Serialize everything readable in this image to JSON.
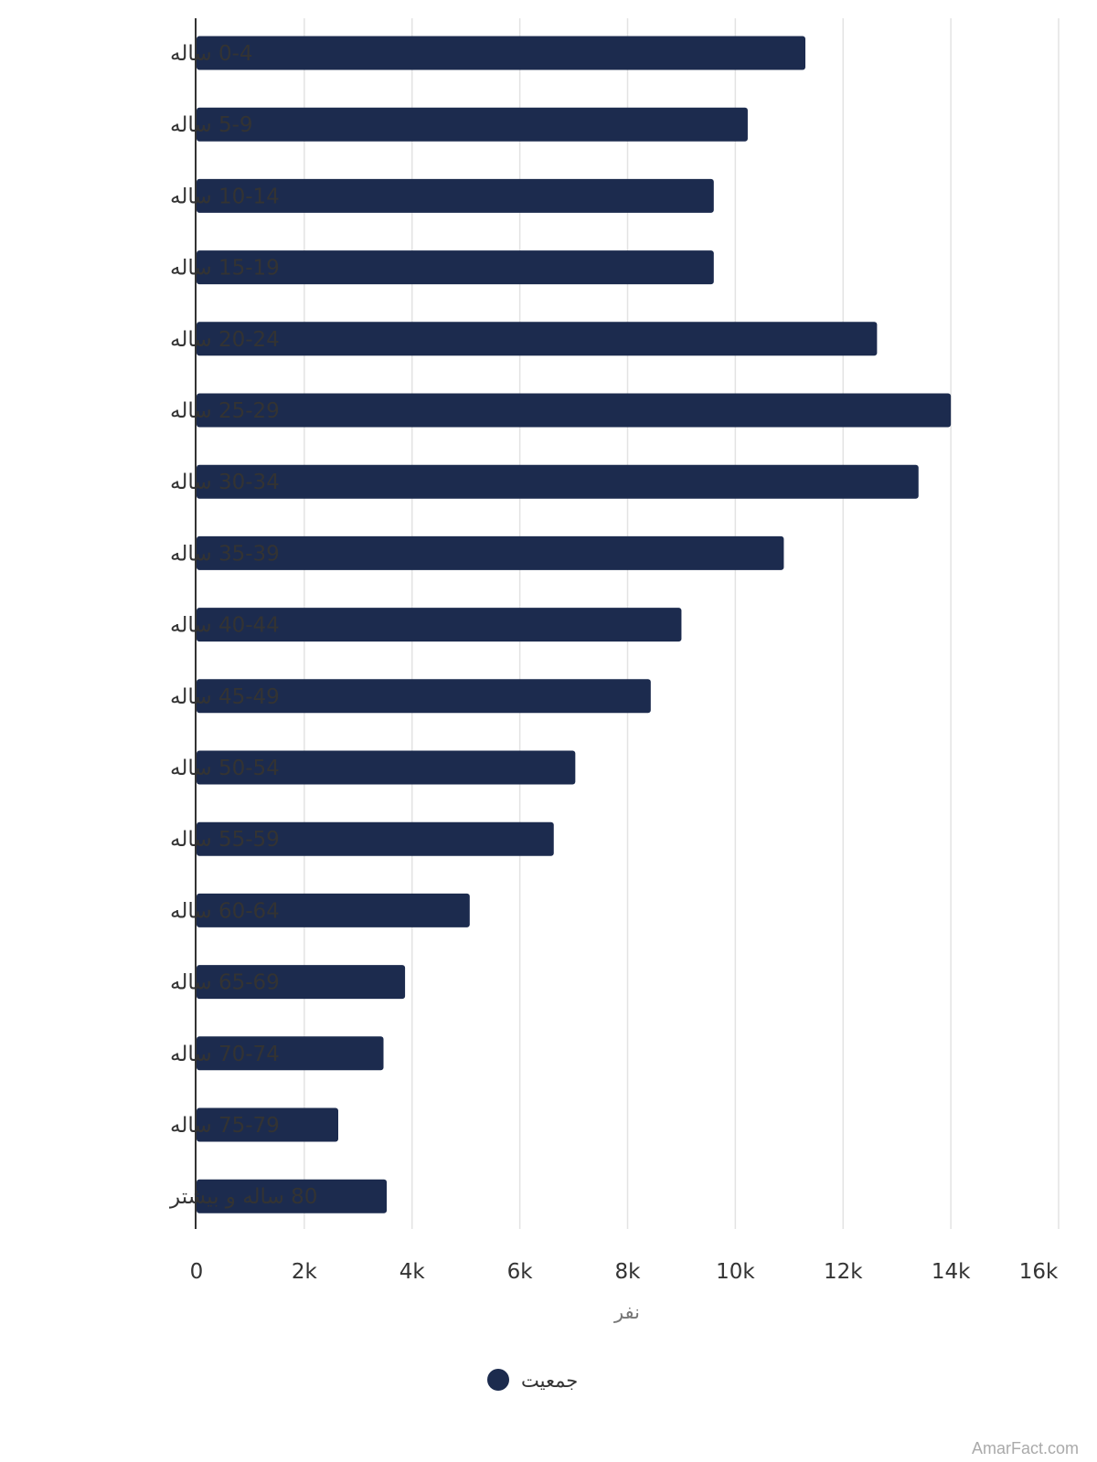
{
  "chart_data": {
    "type": "bar",
    "orientation": "horizontal",
    "categories": [
      "0-4 ساله",
      "5-9 ساله",
      "10-14 ساله",
      "15-19 ساله",
      "20-24 ساله",
      "25-29 ساله",
      "30-34 ساله",
      "35-39 ساله",
      "40-44 ساله",
      "45-49 ساله",
      "50-54 ساله",
      "55-59 ساله",
      "60-64 ساله",
      "65-69 ساله",
      "70-74 ساله",
      "75-79 ساله",
      "80 ساله و بیشتر"
    ],
    "series": [
      {
        "name": "جمعیت",
        "color": "#1c2b4e",
        "values": [
          11300,
          10230,
          9600,
          9600,
          12630,
          14000,
          13400,
          10900,
          9000,
          8430,
          7030,
          6630,
          5070,
          3870,
          3470,
          2630,
          3530
        ]
      }
    ],
    "xlabel": "نفر",
    "xlim": [
      0,
      16000
    ],
    "xticks": [
      0,
      2000,
      4000,
      6000,
      8000,
      10000,
      12000,
      14000,
      16000
    ],
    "xtick_labels": [
      "0",
      "2k",
      "4k",
      "6k",
      "8k",
      "10k",
      "12k",
      "14k",
      "16k"
    ],
    "grid": "vertical",
    "legend": "bottom"
  },
  "watermark": "AmarFact.com"
}
